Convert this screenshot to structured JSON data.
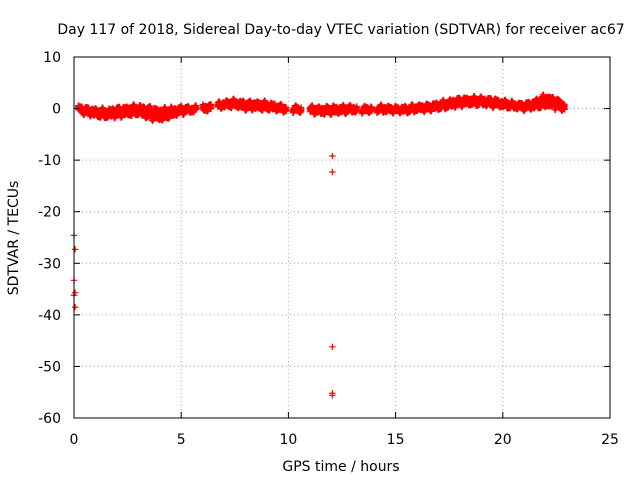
{
  "chart_data": {
    "type": "scatter",
    "title": "Day 117 of 2018, Sidereal Day-to-day VTEC variation (SDTVAR) for receiver ac67",
    "xlabel": "GPS time / hours",
    "ylabel": "SDTVAR / TECUs",
    "xlim": [
      0,
      25
    ],
    "ylim": [
      -60,
      10
    ],
    "xticks": [
      0,
      5,
      10,
      15,
      20,
      25
    ],
    "yticks": [
      10,
      0,
      -10,
      -20,
      -30,
      -40,
      -50,
      -60
    ],
    "xtick_labels": [
      "0",
      "5",
      "10",
      "15",
      "20",
      "25"
    ],
    "ytick_labels": [
      "10",
      "0",
      "-10",
      "-20",
      "-30",
      "-40",
      "-50",
      "-60"
    ],
    "grid": true,
    "legend": "none",
    "marker": "+",
    "series": [
      {
        "name": "SDTVAR",
        "color": "#ff0000",
        "band": {
          "description": "dense sequence of + markers forming a band",
          "x": [
            0.2,
            0.5,
            1.0,
            1.5,
            2.0,
            2.5,
            3.0,
            3.5,
            4.0,
            4.5,
            5.0,
            5.5,
            6.0,
            6.5,
            7.0,
            7.5,
            8.0,
            8.5,
            9.0,
            9.5,
            10.0,
            10.5,
            11.0,
            11.5,
            12.0,
            12.5,
            13.0,
            13.5,
            14.0,
            14.5,
            15.0,
            15.5,
            16.0,
            16.5,
            17.0,
            17.5,
            18.0,
            18.5,
            19.0,
            19.5,
            20.0,
            20.5,
            21.0,
            21.5,
            22.0,
            22.5,
            22.9
          ],
          "y_center": [
            0.0,
            -0.4,
            -0.8,
            -1.0,
            -0.7,
            -0.5,
            -0.3,
            -0.8,
            -1.2,
            -0.8,
            -0.3,
            -0.2,
            0.0,
            0.4,
            0.8,
            1.0,
            0.6,
            0.6,
            0.5,
            0.2,
            -0.2,
            -0.1,
            -0.2,
            -0.4,
            -0.3,
            -0.2,
            -0.1,
            -0.2,
            -0.1,
            -0.1,
            -0.2,
            -0.2,
            0.1,
            0.2,
            0.5,
            0.9,
            1.3,
            1.4,
            1.4,
            1.2,
            0.9,
            0.6,
            0.4,
            0.8,
            1.5,
            1.0,
            0.2
          ],
          "y_halfwidth": [
            0.5,
            0.7,
            0.8,
            0.9,
            1.0,
            1.0,
            1.0,
            1.3,
            1.3,
            1.0,
            0.7,
            0.5,
            0.6,
            0.6,
            0.6,
            0.7,
            0.8,
            0.8,
            0.8,
            0.6,
            0.5,
            0.5,
            0.6,
            0.7,
            0.7,
            0.7,
            0.6,
            0.5,
            0.6,
            0.6,
            0.5,
            0.6,
            0.6,
            0.6,
            0.7,
            0.8,
            0.8,
            0.8,
            0.8,
            0.8,
            0.7,
            0.6,
            0.6,
            0.9,
            1.3,
            1.1,
            0.6
          ],
          "gaps": [
            [
              5.7,
              6.0
            ],
            [
              6.4,
              6.7
            ],
            [
              9.9,
              10.2
            ],
            [
              10.6,
              11.0
            ],
            [
              13.2,
              13.4
            ],
            [
              13.9,
              14.1
            ]
          ]
        },
        "outliers": [
          {
            "x": 0.0,
            "y": -24.6
          },
          {
            "x": 0.05,
            "y": -27.3
          },
          {
            "x": 0.0,
            "y": -33.3
          },
          {
            "x": 0.05,
            "y": -35.7
          },
          {
            "x": 0.0,
            "y": -36.2
          },
          {
            "x": 0.05,
            "y": -38.5
          },
          {
            "x": 12.05,
            "y": -9.2
          },
          {
            "x": 12.05,
            "y": -12.3
          },
          {
            "x": 12.05,
            "y": -46.2
          },
          {
            "x": 12.05,
            "y": -55.2
          },
          {
            "x": 12.05,
            "y": -55.6
          }
        ]
      }
    ]
  }
}
